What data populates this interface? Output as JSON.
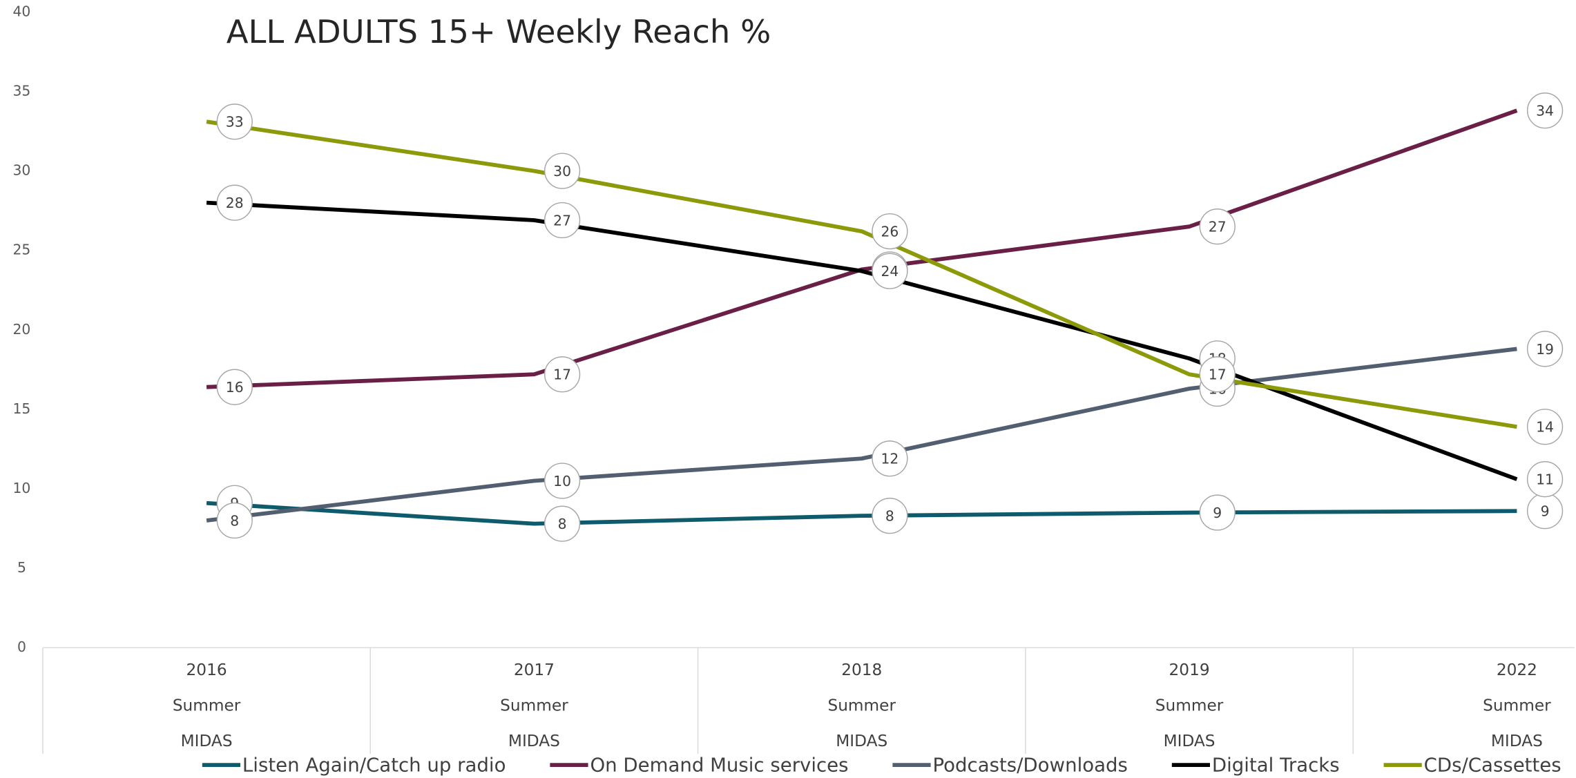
{
  "chart_data": {
    "type": "line",
    "title": "ALL ADULTS 15+ Weekly Reach %",
    "categories": [
      [
        "2016",
        "Summer",
        "MIDAS"
      ],
      [
        "2017",
        "Summer",
        "MIDAS"
      ],
      [
        "2018",
        "Summer",
        "MIDAS"
      ],
      [
        "2019",
        "Summer",
        "MIDAS"
      ],
      [
        "2022",
        "Summer",
        "MIDAS"
      ]
    ],
    "ylim": [
      0,
      40
    ],
    "yticks": [
      0,
      5,
      10,
      15,
      20,
      25,
      30,
      35,
      40
    ],
    "grid": false,
    "legend": "bottom",
    "series": [
      {
        "name": "Listen Again/Catch up radio",
        "color": "#0e5b6b",
        "values": [
          9.1,
          7.8,
          8.3,
          8.5,
          8.6
        ],
        "value_labels": [
          "9",
          "8",
          "8",
          "9",
          "9"
        ]
      },
      {
        "name": "On Demand Music services",
        "color": "#6a1f47",
        "values": [
          16.4,
          17.2,
          23.8,
          26.5,
          33.8
        ],
        "value_labels": [
          "16",
          "17",
          "24",
          "27",
          "34"
        ]
      },
      {
        "name": "Podcasts/Downloads",
        "color": "#525f70",
        "values": [
          8.0,
          10.5,
          11.9,
          16.3,
          18.8
        ],
        "value_labels": [
          "8",
          "10",
          "12",
          "16",
          "19"
        ]
      },
      {
        "name": "Digital Tracks",
        "color": "#000000",
        "values": [
          28.0,
          26.9,
          23.7,
          18.2,
          10.6
        ],
        "value_labels": [
          "28",
          "27",
          "24",
          "18",
          "11"
        ]
      },
      {
        "name": "CDs/Cassettes",
        "color": "#8c9a0a",
        "values": [
          33.1,
          30.0,
          26.2,
          17.2,
          13.9
        ],
        "value_labels": [
          "33",
          "30",
          "26",
          "17",
          "14"
        ]
      }
    ]
  }
}
